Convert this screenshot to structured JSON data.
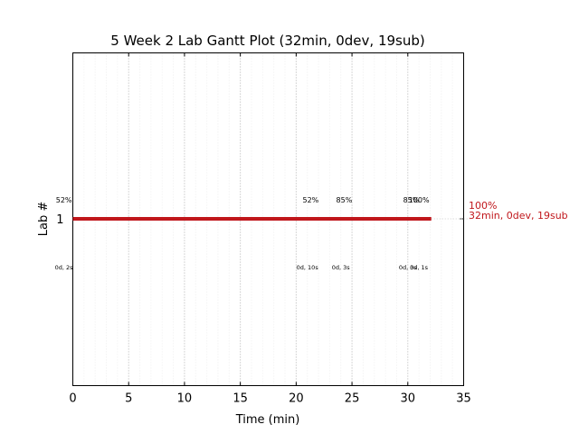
{
  "chart_data": {
    "type": "gantt",
    "title": "5 Week 2 Lab Gantt Plot (32min, 0dev, 19sub)",
    "xlabel": "Time (min)",
    "ylabel": "Lab #",
    "xlim": [
      0,
      35
    ],
    "xticks": [
      0,
      5,
      10,
      15,
      20,
      25,
      30,
      35
    ],
    "xtick_labels": [
      "0",
      "5",
      "10",
      "15",
      "20",
      "25",
      "30",
      "35"
    ],
    "yticks": [
      1
    ],
    "ytick_labels": [
      "1"
    ],
    "grid": "x-only",
    "bars": [
      {
        "lab": 1,
        "start": 0,
        "end": 32.1,
        "color": "#c0161b"
      }
    ],
    "end_label": {
      "lab": 1,
      "x": 32.1,
      "line1": "100%",
      "line2": "32min, 0dev, 19sub",
      "color": "#c0161b"
    },
    "annotations_above": [
      {
        "x": -0.8,
        "text": "52%"
      },
      {
        "x": 21.3,
        "text": "52%"
      },
      {
        "x": 24.3,
        "text": "85%"
      },
      {
        "x": 30.3,
        "text": "85%"
      },
      {
        "x": 31.0,
        "text": "100%"
      }
    ],
    "annotations_below": [
      {
        "x": -0.8,
        "text": "0d, 2s"
      },
      {
        "x": 21.0,
        "text": "0d, 10s"
      },
      {
        "x": 24.0,
        "text": "0d, 3s"
      },
      {
        "x": 30.0,
        "text": "0d, 3s"
      },
      {
        "x": 31.0,
        "text": "0d, 1s"
      }
    ]
  }
}
